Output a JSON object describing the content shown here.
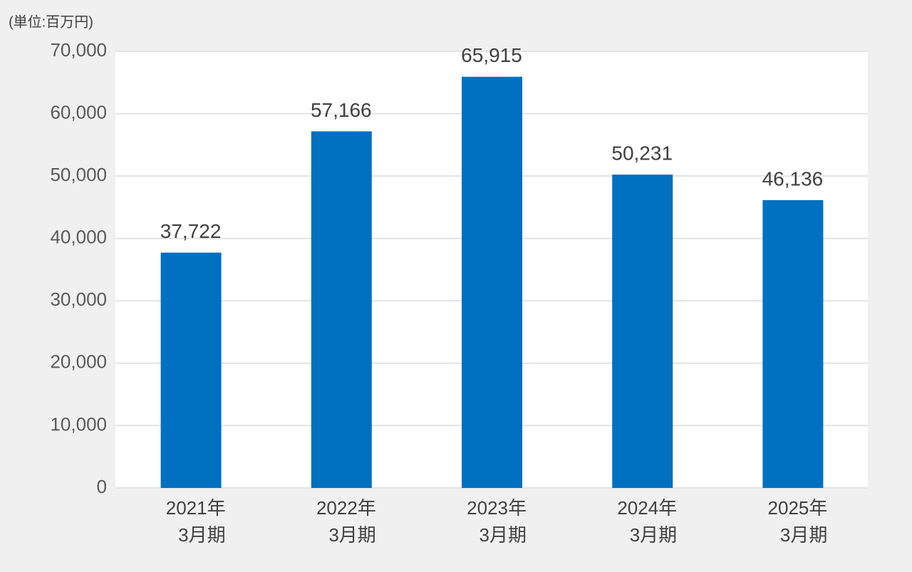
{
  "chart_data": {
    "type": "bar",
    "unit_label": "(単位:百万円)",
    "categories": [
      [
        "2021年",
        "3月期"
      ],
      [
        "2022年",
        "3月期"
      ],
      [
        "2023年",
        "3月期"
      ],
      [
        "2024年",
        "3月期"
      ],
      [
        "2025年",
        "3月期"
      ]
    ],
    "values": [
      37722,
      57166,
      65915,
      50231,
      46136
    ],
    "value_labels": [
      "37,722",
      "57,166",
      "65,915",
      "50,231",
      "46,136"
    ],
    "color": "#0070c0",
    "ylim": [
      0,
      70000
    ],
    "yticks": [
      0,
      {
        "value": 10000,
        "label": "10,000"
      },
      {
        "value": 20000,
        "label": "20,000"
      },
      {
        "value": 30000,
        "label": "30,000"
      },
      {
        "value": 40000,
        "label": "40,000"
      },
      {
        "value": 50000,
        "label": "50,000"
      },
      {
        "value": 60000,
        "label": "60,000"
      },
      {
        "value": 70000,
        "label": "70,000"
      }
    ],
    "grid": true
  }
}
